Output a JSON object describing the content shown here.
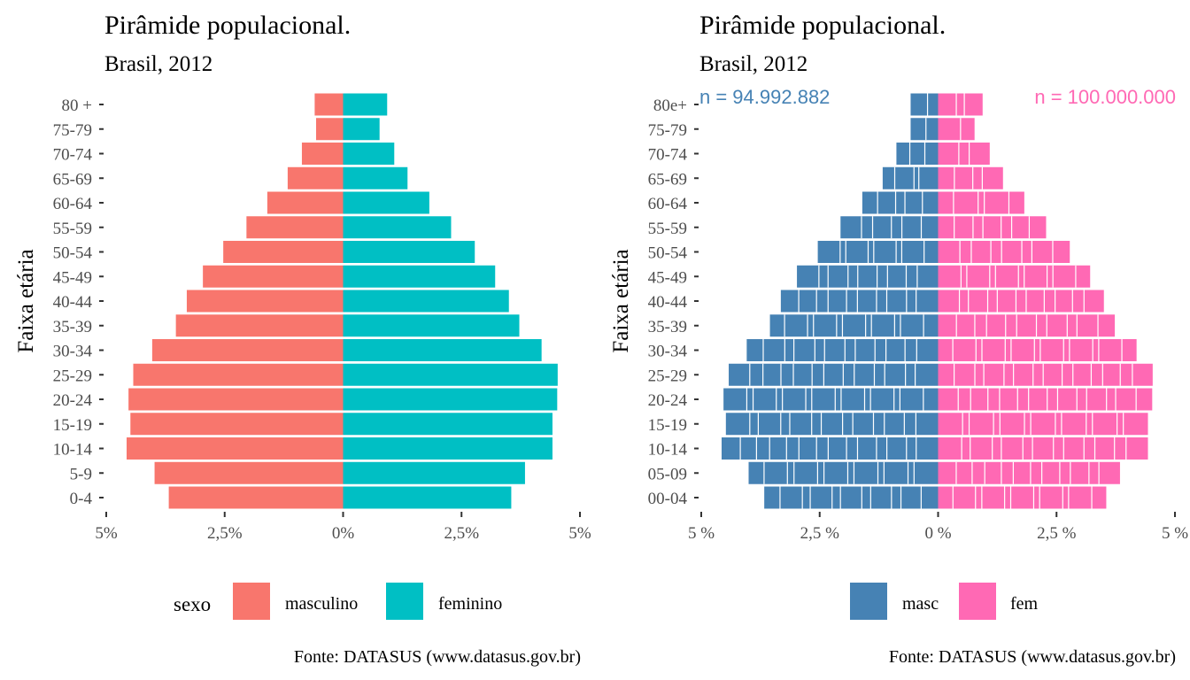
{
  "chart_data": [
    {
      "type": "bar",
      "orientation": "horizontal-pyramid",
      "title": "Pirâmide populacional.",
      "subtitle": "Brasil, 2012",
      "ylabel": "Faixa etária",
      "xlabel": "",
      "categories": [
        "0-4",
        "5-9",
        "10-14",
        "15-19",
        "20-24",
        "25-29",
        "30-34",
        "35-39",
        "40-44",
        "45-49",
        "50-54",
        "55-59",
        "60-64",
        "65-69",
        "70-74",
        "75-79",
        "80 +"
      ],
      "xlim": [
        -5,
        5
      ],
      "xticks": [
        "5%",
        "2,5%",
        "0%",
        "2,5%",
        "5%"
      ],
      "legend": {
        "title": "sexo",
        "position": "bottom"
      },
      "series": [
        {
          "name": "masculino",
          "color": "#F8766D",
          "side": "left",
          "values": [
            3.68,
            3.98,
            4.57,
            4.49,
            4.53,
            4.43,
            4.03,
            3.53,
            3.3,
            2.96,
            2.53,
            2.04,
            1.6,
            1.17,
            0.87,
            0.57,
            0.6
          ]
        },
        {
          "name": "feminino",
          "color": "#00BFC4",
          "side": "right",
          "values": [
            3.55,
            3.84,
            4.42,
            4.42,
            4.52,
            4.53,
            4.19,
            3.72,
            3.5,
            3.21,
            2.78,
            2.28,
            1.82,
            1.36,
            1.08,
            0.77,
            0.93
          ]
        }
      ],
      "caption": "Fonte: DATASUS (www.datasus.gov.br)"
    },
    {
      "type": "bar",
      "orientation": "horizontal-pyramid",
      "title": "Pirâmide populacional.",
      "subtitle": "Brasil, 2012",
      "ylabel": "Faixa etária",
      "xlabel": "",
      "categories": [
        "00-04",
        "05-09",
        "10-14",
        "15-19",
        "20-24",
        "25-29",
        "30-34",
        "35-39",
        "40-44",
        "45-49",
        "50-54",
        "55-59",
        "60-64",
        "65-69",
        "70-74",
        "75-79",
        "80e+"
      ],
      "xlim": [
        -5,
        5
      ],
      "xticks": [
        "5 %",
        "2,5 %",
        "0 %",
        "2,5 %",
        "5 %"
      ],
      "legend": {
        "title": "",
        "position": "bottom"
      },
      "annotations": [
        {
          "text": "n = 94.992.882",
          "color": "#4682B4"
        },
        {
          "text": "n = 100.000.000",
          "color": "#FF69B4"
        }
      ],
      "series": [
        {
          "name": "masc",
          "color": "#4682B4",
          "side": "left",
          "values": [
            3.67,
            4.0,
            4.57,
            4.48,
            4.53,
            4.42,
            4.04,
            3.55,
            3.32,
            2.98,
            2.54,
            2.06,
            1.6,
            1.17,
            0.88,
            0.58,
            0.58
          ]
        },
        {
          "name": "fem",
          "color": "#FF69B4",
          "side": "right",
          "values": [
            3.55,
            3.84,
            4.43,
            4.43,
            4.52,
            4.53,
            4.19,
            3.73,
            3.5,
            3.21,
            2.78,
            2.28,
            1.82,
            1.37,
            1.09,
            0.77,
            0.94
          ]
        }
      ],
      "caption": "Fonte: DATASUS (www.datasus.gov.br)"
    }
  ]
}
